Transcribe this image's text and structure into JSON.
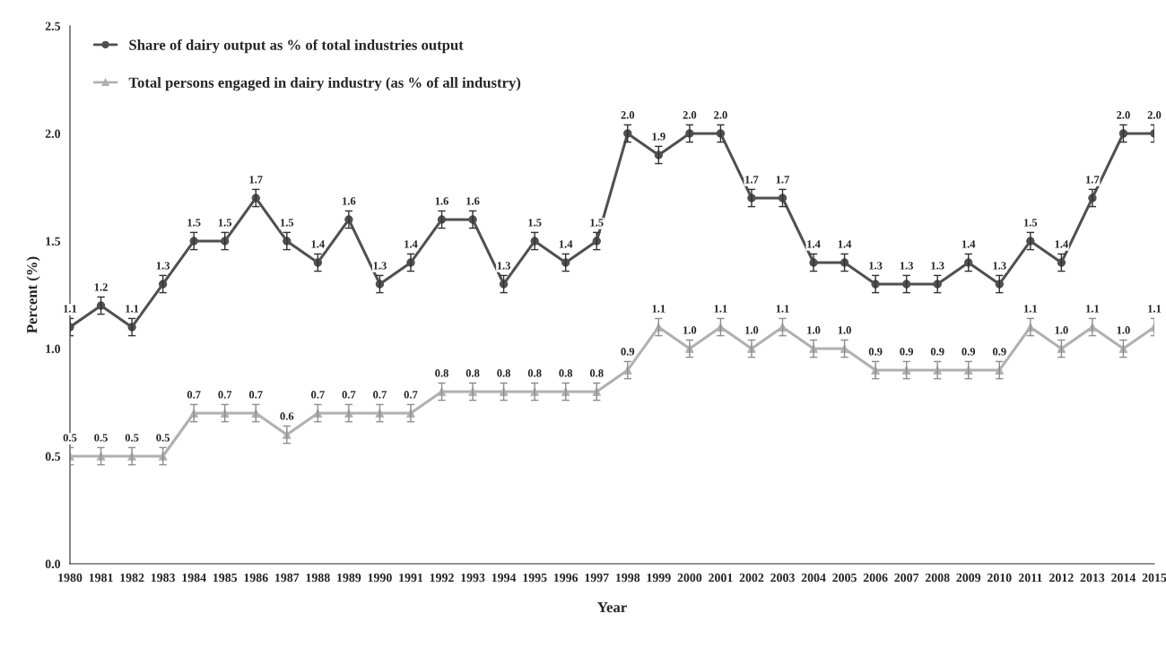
{
  "chart_data": {
    "type": "line",
    "xlabel": "Year",
    "ylabel": "Percent (%)",
    "categories": [
      "1980",
      "1981",
      "1982",
      "1983",
      "1984",
      "1985",
      "1986",
      "1987",
      "1988",
      "1989",
      "1990",
      "1991",
      "1992",
      "1993",
      "1994",
      "1995",
      "1996",
      "1997",
      "1998",
      "1999",
      "2000",
      "2001",
      "2002",
      "2003",
      "2004",
      "2005",
      "2006",
      "2007",
      "2008",
      "2009",
      "2010",
      "2011",
      "2012",
      "2013",
      "2014",
      "2015"
    ],
    "series": [
      {
        "name": "Share of dairy output as % of total industries output",
        "color": "#505050",
        "marker": "circle",
        "values": [
          1.1,
          1.2,
          1.1,
          1.3,
          1.5,
          1.5,
          1.7,
          1.5,
          1.4,
          1.6,
          1.3,
          1.4,
          1.6,
          1.6,
          1.3,
          1.5,
          1.4,
          1.5,
          2.0,
          1.9,
          2.0,
          2.0,
          1.7,
          1.7,
          1.4,
          1.4,
          1.3,
          1.3,
          1.3,
          1.4,
          1.3,
          1.5,
          1.4,
          1.7,
          2.0,
          2.0
        ],
        "value_labels": [
          "1.1",
          "1.2",
          "1.1",
          "1.3",
          "1.5",
          "1.5",
          "1.7",
          "1.5",
          "1.4",
          "1.6",
          "1.3",
          "1.4",
          "1.6",
          "1.6",
          "1.3",
          "1.5",
          "1.4",
          "1.5",
          "2.0",
          "1.9",
          "2.0",
          "2.0",
          "1.7",
          "1.7",
          "1.4",
          "1.4",
          "1.3",
          "1.3",
          "1.3",
          "1.4",
          "1.3",
          "1.5",
          "1.4",
          "1.7",
          "2.0",
          "2.0"
        ],
        "errors": [
          0.04,
          0.04,
          0.04,
          0.04,
          0.04,
          0.04,
          0.04,
          0.04,
          0.04,
          0.04,
          0.04,
          0.04,
          0.04,
          0.04,
          0.04,
          0.04,
          0.04,
          0.04,
          0.04,
          0.04,
          0.04,
          0.04,
          0.04,
          0.04,
          0.04,
          0.04,
          0.04,
          0.04,
          0.04,
          0.04,
          0.04,
          0.04,
          0.04,
          0.04,
          0.04,
          0.04
        ]
      },
      {
        "name": "Total persons engaged in dairy industry (as % of all industry)",
        "color": "#b0b0b0",
        "marker": "triangle",
        "values": [
          0.5,
          0.5,
          0.5,
          0.5,
          0.7,
          0.7,
          0.7,
          0.6,
          0.7,
          0.7,
          0.7,
          0.7,
          0.8,
          0.8,
          0.8,
          0.8,
          0.8,
          0.8,
          0.9,
          1.1,
          1.0,
          1.1,
          1.0,
          1.1,
          1.0,
          1.0,
          0.9,
          0.9,
          0.9,
          0.9,
          0.9,
          1.1,
          1.0,
          1.1,
          1.0,
          1.1
        ],
        "value_labels": [
          "0.5",
          "0.5",
          "0.5",
          "0.5",
          "0.7",
          "0.7",
          "0.7",
          "0.6",
          "0.7",
          "0.7",
          "0.7",
          "0.7",
          "0.8",
          "0.8",
          "0.8",
          "0.8",
          "0.8",
          "0.8",
          "0.9",
          "1.1",
          "1.0",
          "1.1",
          "1.0",
          "1.1",
          "1.0",
          "1.0",
          "0.9",
          "0.9",
          "0.9",
          "0.9",
          "0.9",
          "1.1",
          "1.0",
          "1.1",
          "1.0",
          "1.1"
        ],
        "errors": [
          0.04,
          0.04,
          0.04,
          0.04,
          0.04,
          0.04,
          0.04,
          0.04,
          0.04,
          0.04,
          0.04,
          0.04,
          0.04,
          0.04,
          0.04,
          0.04,
          0.04,
          0.04,
          0.04,
          0.04,
          0.04,
          0.04,
          0.04,
          0.04,
          0.04,
          0.04,
          0.04,
          0.04,
          0.04,
          0.04,
          0.04,
          0.04,
          0.04,
          0.04,
          0.04,
          0.04
        ]
      }
    ],
    "ylim": [
      0,
      2.5
    ],
    "yticks": [
      {
        "value": 0,
        "label": "0.0"
      },
      {
        "value": 0.5,
        "label": "0.5"
      },
      {
        "value": 1.0,
        "label": "1.0"
      },
      {
        "value": 1.5,
        "label": "1.5"
      },
      {
        "value": 2.0,
        "label": "2.0"
      },
      {
        "value": 2.5,
        "label": "2.5"
      }
    ],
    "legend": "top left",
    "grid": false,
    "line_style": "solid"
  }
}
